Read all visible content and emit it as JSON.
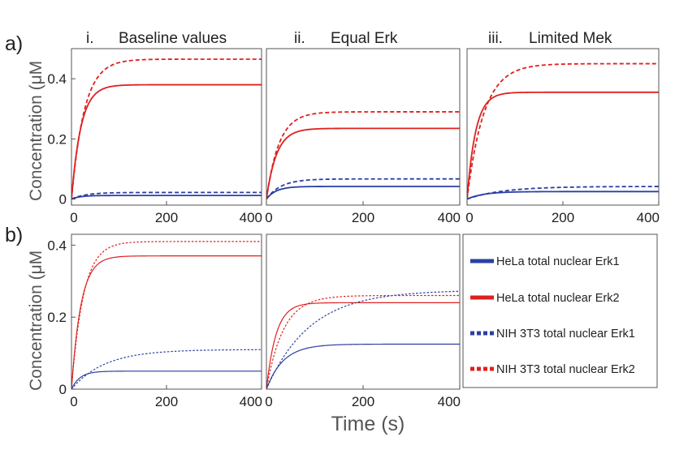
{
  "figure": {
    "row_a_label": "a)",
    "row_b_label": "b)",
    "ylabel": "Concentration (μM",
    "xlabel": "Time (s)"
  },
  "colors": {
    "erk1": "#2b3fa3",
    "erk2": "#e02020"
  },
  "legend": {
    "items": [
      {
        "label": "HeLa total nuclear Erk1",
        "color": "#2b3fa3",
        "dashed": false
      },
      {
        "label": "HeLa total nuclear Erk2",
        "color": "#e02020",
        "dashed": false
      },
      {
        "label": "NIH 3T3 total nuclear Erk1",
        "color": "#2b3fa3",
        "dashed": true
      },
      {
        "label": "NIH 3T3 total nuclear Erk2",
        "color": "#e02020",
        "dashed": true
      }
    ]
  },
  "chart_data": [
    {
      "id": "a-i",
      "type": "line",
      "row": "a",
      "title_num": "i.",
      "title": "Baseline values",
      "xlim": [
        0,
        400
      ],
      "ylim": [
        -0.02,
        0.5
      ],
      "xticks": [
        0,
        200,
        400
      ],
      "yticks": [
        0,
        0.2,
        0.4
      ],
      "series": [
        {
          "name": "HeLa total nuclear Erk1",
          "plateau": 0.012,
          "tau": 18,
          "style": "solid"
        },
        {
          "name": "HeLa total nuclear Erk2",
          "plateau": 0.38,
          "tau": 20,
          "style": "solid"
        },
        {
          "name": "NIH 3T3 total nuclear Erk1",
          "plateau": 0.022,
          "tau": 30,
          "style": "dashed"
        },
        {
          "name": "NIH 3T3 total nuclear Erk2",
          "plateau": 0.465,
          "tau": 27,
          "style": "dashed"
        }
      ]
    },
    {
      "id": "a-ii",
      "type": "line",
      "row": "a",
      "title_num": "ii.",
      "title": "Equal Erk",
      "xlim": [
        0,
        400
      ],
      "ylim": [
        -0.02,
        0.5
      ],
      "xticks": [
        0,
        200,
        400
      ],
      "yticks": [],
      "series": [
        {
          "name": "HeLa total nuclear Erk1",
          "plateau": 0.042,
          "tau": 20,
          "style": "solid"
        },
        {
          "name": "HeLa total nuclear Erk2",
          "plateau": 0.235,
          "tau": 21,
          "style": "solid"
        },
        {
          "name": "NIH 3T3 total nuclear Erk1",
          "plateau": 0.067,
          "tau": 30,
          "style": "dashed"
        },
        {
          "name": "NIH 3T3 total nuclear Erk2",
          "plateau": 0.29,
          "tau": 26,
          "style": "dashed"
        }
      ]
    },
    {
      "id": "a-iii",
      "type": "line",
      "row": "a",
      "title_num": "iii.",
      "title": "Limited Mek",
      "xlim": [
        0,
        400
      ],
      "ylim": [
        -0.02,
        0.5
      ],
      "xticks": [
        0,
        200,
        400
      ],
      "yticks": [],
      "series": [
        {
          "name": "HeLa total nuclear Erk1",
          "plateau": 0.025,
          "tau": 35,
          "style": "solid"
        },
        {
          "name": "HeLa total nuclear Erk2",
          "plateau": 0.355,
          "tau": 18,
          "style": "solid"
        },
        {
          "name": "NIH 3T3 total nuclear Erk1",
          "plateau": 0.042,
          "tau": 75,
          "style": "dashed"
        },
        {
          "name": "NIH 3T3 total nuclear Erk2",
          "plateau": 0.45,
          "tau": 35,
          "style": "dashed"
        }
      ]
    },
    {
      "id": "b-i",
      "type": "line",
      "row": "b",
      "title_num": "",
      "title": "",
      "xlim": [
        0,
        400
      ],
      "ylim": [
        0,
        0.43
      ],
      "xticks": [
        0,
        200,
        400
      ],
      "yticks": [
        0,
        0.2,
        0.4
      ],
      "series": [
        {
          "name": "HeLa total nuclear Erk1",
          "plateau": 0.05,
          "tau": 18,
          "style": "solid"
        },
        {
          "name": "HeLa total nuclear Erk2",
          "plateau": 0.37,
          "tau": 20,
          "style": "solid"
        },
        {
          "name": "NIH 3T3 total nuclear Erk1",
          "plateau": 0.11,
          "tau": 70,
          "style": "dashed"
        },
        {
          "name": "NIH 3T3 total nuclear Erk2",
          "plateau": 0.41,
          "tau": 25,
          "style": "dashed"
        }
      ]
    },
    {
      "id": "b-ii",
      "type": "line",
      "row": "b",
      "title_num": "",
      "title": "",
      "xlim": [
        0,
        400
      ],
      "ylim": [
        0,
        0.43
      ],
      "xticks": [
        0,
        200,
        400
      ],
      "yticks": [],
      "series": [
        {
          "name": "HeLa total nuclear Erk1",
          "plateau": 0.125,
          "tau": 35,
          "style": "solid"
        },
        {
          "name": "HeLa total nuclear Erk2",
          "plateau": 0.24,
          "tau": 20,
          "style": "solid"
        },
        {
          "name": "NIH 3T3 total nuclear Erk1",
          "plateau": 0.275,
          "tau": 90,
          "style": "dashed"
        },
        {
          "name": "NIH 3T3 total nuclear Erk2",
          "plateau": 0.26,
          "tau": 35,
          "style": "dashed"
        }
      ]
    }
  ]
}
